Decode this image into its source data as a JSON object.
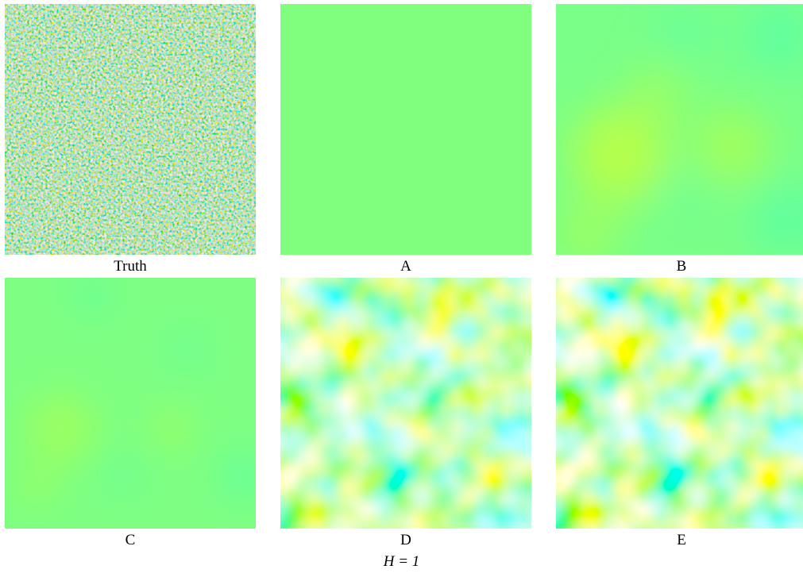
{
  "figure": {
    "panels": [
      {
        "label": "Truth"
      },
      {
        "label": "A"
      },
      {
        "label": "B"
      },
      {
        "label": "C"
      },
      {
        "label": "D"
      },
      {
        "label": "E"
      }
    ],
    "footer": "H = 1"
  },
  "colors": {
    "flat_green": "#80ff7f",
    "cyan": "#2affd0",
    "yellow": "#e4ff1c",
    "blue": "#1b74ff",
    "red": "#ff5a1a",
    "light_green": "#7fff8f"
  }
}
